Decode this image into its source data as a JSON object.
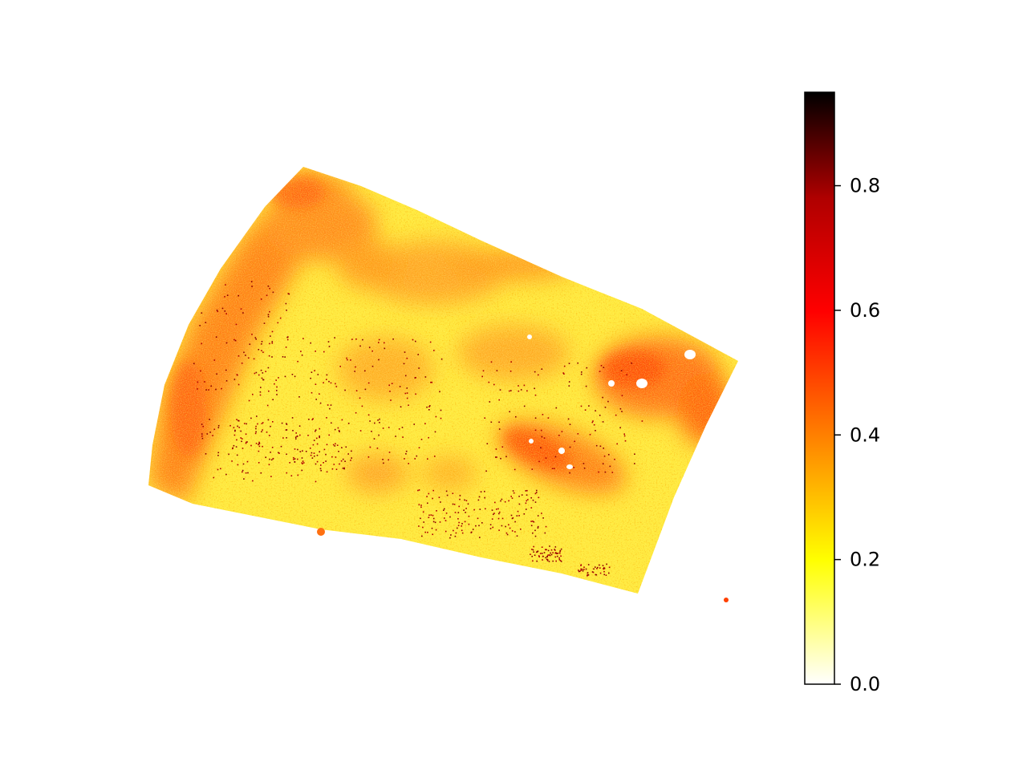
{
  "chart_data": {
    "type": "heatmap",
    "title": "",
    "xlabel": "",
    "ylabel": "",
    "axes_visible": false,
    "grid": false,
    "colormap": "hot_r",
    "colorbar": {
      "location": "right",
      "range": [
        0.0,
        0.95
      ],
      "ticks": [
        0.0,
        0.2,
        0.4,
        0.6,
        0.8
      ],
      "tick_labels": [
        "0.0",
        "0.2",
        "0.4",
        "0.6",
        "0.8"
      ],
      "colors": [
        "#ffffff",
        "#ffff00",
        "#ff8000",
        "#ff0000",
        "#b00000",
        "#000000"
      ]
    },
    "regions": [
      {
        "name": "background",
        "value": 0.25
      },
      {
        "name": "left-edge band",
        "value": 0.45
      },
      {
        "name": "upper-center patch",
        "value": 0.38
      },
      {
        "name": "lower-right arc",
        "value": 0.5
      },
      {
        "name": "right cluster",
        "value": 0.55
      },
      {
        "name": "scattered high spots",
        "value": 0.85
      }
    ]
  }
}
